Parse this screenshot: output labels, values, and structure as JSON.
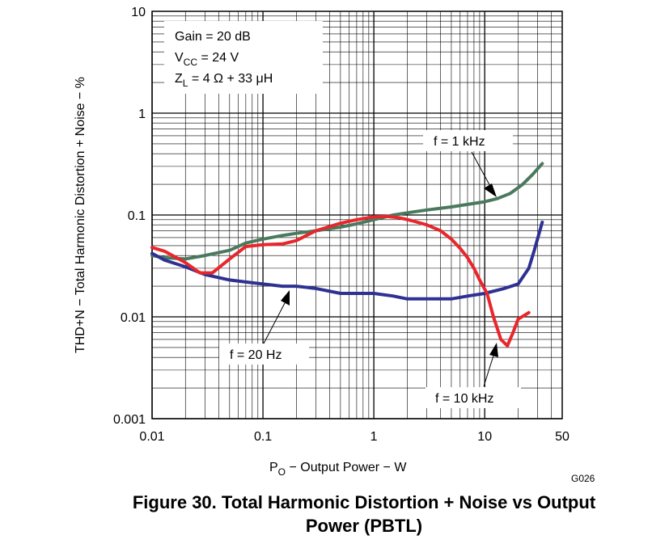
{
  "chart_data": {
    "type": "line",
    "title": "",
    "xlabel": {
      "main": "P",
      "sub": "O",
      "rest": " − Output Power − W"
    },
    "ylabel": "THD+N − Total Harmonic Distortion + Noise − %",
    "xscale": "log",
    "yscale": "log",
    "xlim": [
      0.01,
      50
    ],
    "ylim": [
      0.001,
      10
    ],
    "grid": true,
    "x_ticks": [
      {
        "value": 0.01,
        "label": "0.01"
      },
      {
        "value": 0.1,
        "label": "0.1"
      },
      {
        "value": 1,
        "label": "1"
      },
      {
        "value": 10,
        "label": "10"
      },
      {
        "value": 50,
        "label": "50"
      }
    ],
    "y_ticks": [
      {
        "value": 10,
        "label": "10"
      },
      {
        "value": 1,
        "label": "1"
      },
      {
        "value": 0.1,
        "label": "0.1"
      },
      {
        "value": 0.01,
        "label": "0.01"
      },
      {
        "value": 0.001,
        "label": "0.001"
      }
    ],
    "conditions": {
      "gain": "Gain = 20 dB",
      "vcc_main": "V",
      "vcc_sub": "CC",
      "vcc_rest": " = 24 V",
      "zl_main": "Z",
      "zl_sub": "L",
      "zl_rest": " = 4 Ω + 33 μH"
    },
    "series": [
      {
        "name": "f = 1 kHz",
        "color": "#4a7a5e",
        "x": [
          0.01,
          0.013,
          0.02,
          0.03,
          0.05,
          0.07,
          0.1,
          0.15,
          0.2,
          0.3,
          0.5,
          0.7,
          1,
          1.5,
          2,
          3,
          5,
          7,
          10,
          13,
          17,
          22,
          27,
          33
        ],
        "y": [
          0.04,
          0.038,
          0.037,
          0.04,
          0.045,
          0.053,
          0.058,
          0.063,
          0.066,
          0.07,
          0.076,
          0.082,
          0.09,
          0.1,
          0.105,
          0.112,
          0.12,
          0.127,
          0.135,
          0.145,
          0.163,
          0.2,
          0.25,
          0.32
        ]
      },
      {
        "name": "f = 20 Hz",
        "color": "#2e3192",
        "x": [
          0.01,
          0.013,
          0.02,
          0.03,
          0.05,
          0.07,
          0.1,
          0.15,
          0.2,
          0.3,
          0.5,
          0.7,
          1,
          1.5,
          2,
          3,
          5,
          7,
          10,
          15,
          20,
          25,
          28,
          33
        ],
        "y": [
          0.042,
          0.036,
          0.031,
          0.026,
          0.023,
          0.022,
          0.021,
          0.02,
          0.02,
          0.019,
          0.017,
          0.017,
          0.017,
          0.016,
          0.015,
          0.015,
          0.015,
          0.016,
          0.017,
          0.019,
          0.021,
          0.03,
          0.045,
          0.085
        ]
      },
      {
        "name": "f = 10 kHz",
        "color": "#e8262b",
        "x": [
          0.01,
          0.013,
          0.02,
          0.027,
          0.035,
          0.05,
          0.07,
          0.1,
          0.15,
          0.2,
          0.3,
          0.5,
          0.7,
          1,
          1.3,
          1.7,
          2.2,
          3,
          4,
          5,
          6,
          7,
          8,
          9,
          10.5,
          12,
          14,
          16,
          18,
          20,
          25
        ],
        "y": [
          0.048,
          0.044,
          0.034,
          0.027,
          0.027,
          0.037,
          0.049,
          0.051,
          0.052,
          0.056,
          0.07,
          0.083,
          0.09,
          0.096,
          0.097,
          0.094,
          0.088,
          0.08,
          0.07,
          0.058,
          0.047,
          0.038,
          0.03,
          0.023,
          0.017,
          0.01,
          0.006,
          0.0052,
          0.007,
          0.0095,
          0.011
        ]
      }
    ],
    "annotations": [
      {
        "series": "f = 1 kHz",
        "label": "f = 1 kHz",
        "points_to": [
          10.5,
          0.132
        ]
      },
      {
        "series": "f = 20 Hz",
        "label": "f = 20 Hz",
        "points_to": [
          0.2,
          0.019
        ]
      },
      {
        "series": "f = 10 kHz",
        "label": "f = 10 kHz",
        "points_to": [
          14,
          0.0068
        ]
      }
    ],
    "figure_code": "G026"
  },
  "caption": {
    "line1": "Figure 30. Total Harmonic Distortion + Noise vs Output",
    "line2": "Power (PBTL)"
  }
}
